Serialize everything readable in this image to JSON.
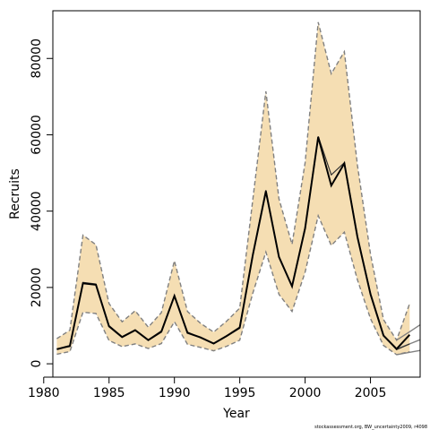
{
  "chart_data": {
    "type": "area",
    "xlabel": "Year",
    "ylabel": "Recruits",
    "caption": "stockassessment.org,  BW_uncertainty2009,  r4098",
    "xlim": [
      1980.7,
      2008.8
    ],
    "ylim": [
      -3500,
      92500
    ],
    "x_ticks": [
      1980,
      1985,
      1990,
      1995,
      2000,
      2005
    ],
    "y_ticks": [
      0,
      20000,
      40000,
      60000,
      80000
    ],
    "grid": false,
    "legend": "none",
    "colors": {
      "band": "#f5deb3",
      "estimate": "#000000",
      "bounds": "#808080",
      "axis": "#000000"
    },
    "series": [
      {
        "x": [
          1981,
          1982,
          1983,
          1984,
          1985,
          1986,
          1987,
          1988,
          1989,
          1990,
          1991,
          1992,
          1993,
          1994,
          1995,
          1996,
          1997,
          1998,
          1999,
          2000,
          2001,
          2002,
          2003,
          2004,
          2005,
          2006,
          2007,
          2008
        ],
        "estimate": [
          3800,
          4700,
          21100,
          20700,
          9800,
          7000,
          8800,
          6200,
          8400,
          17800,
          8100,
          6900,
          5300,
          7300,
          9500,
          28500,
          45200,
          28000,
          20300,
          35500,
          59400,
          46700,
          52500,
          33200,
          18200,
          7400,
          3900,
          7600
        ],
        "estimate_alt": [
          3900,
          4500,
          21300,
          20900,
          10000,
          7100,
          8900,
          6300,
          8600,
          17900,
          8300,
          6800,
          5400,
          7200,
          9300,
          28600,
          45500,
          27900,
          20400,
          35800,
          59600,
          49500,
          52700,
          33500,
          18500,
          7500,
          3700,
          5200
        ],
        "lower": [
          2500,
          3200,
          13500,
          13200,
          6100,
          4500,
          5200,
          4000,
          5300,
          11000,
          5100,
          4300,
          3400,
          4600,
          6200,
          18500,
          29300,
          18200,
          13700,
          24000,
          38800,
          31000,
          34500,
          22000,
          11800,
          4800,
          2400,
          3200
        ],
        "upper": [
          6600,
          8800,
          33700,
          31200,
          15800,
          11000,
          13900,
          9600,
          13400,
          27000,
          13700,
          10600,
          8300,
          11200,
          14600,
          43000,
          71400,
          43200,
          31300,
          52700,
          89500,
          76000,
          81800,
          52000,
          28700,
          11600,
          6200,
          15800
        ],
        "tail_x": [
          2007,
          2008,
          2008.8
        ],
        "tail_estimate": [
          3900,
          5200,
          6300
        ],
        "tail_upper": [
          6200,
          8400,
          10200
        ],
        "tail_lower": [
          2400,
          3000,
          3500
        ]
      }
    ]
  }
}
